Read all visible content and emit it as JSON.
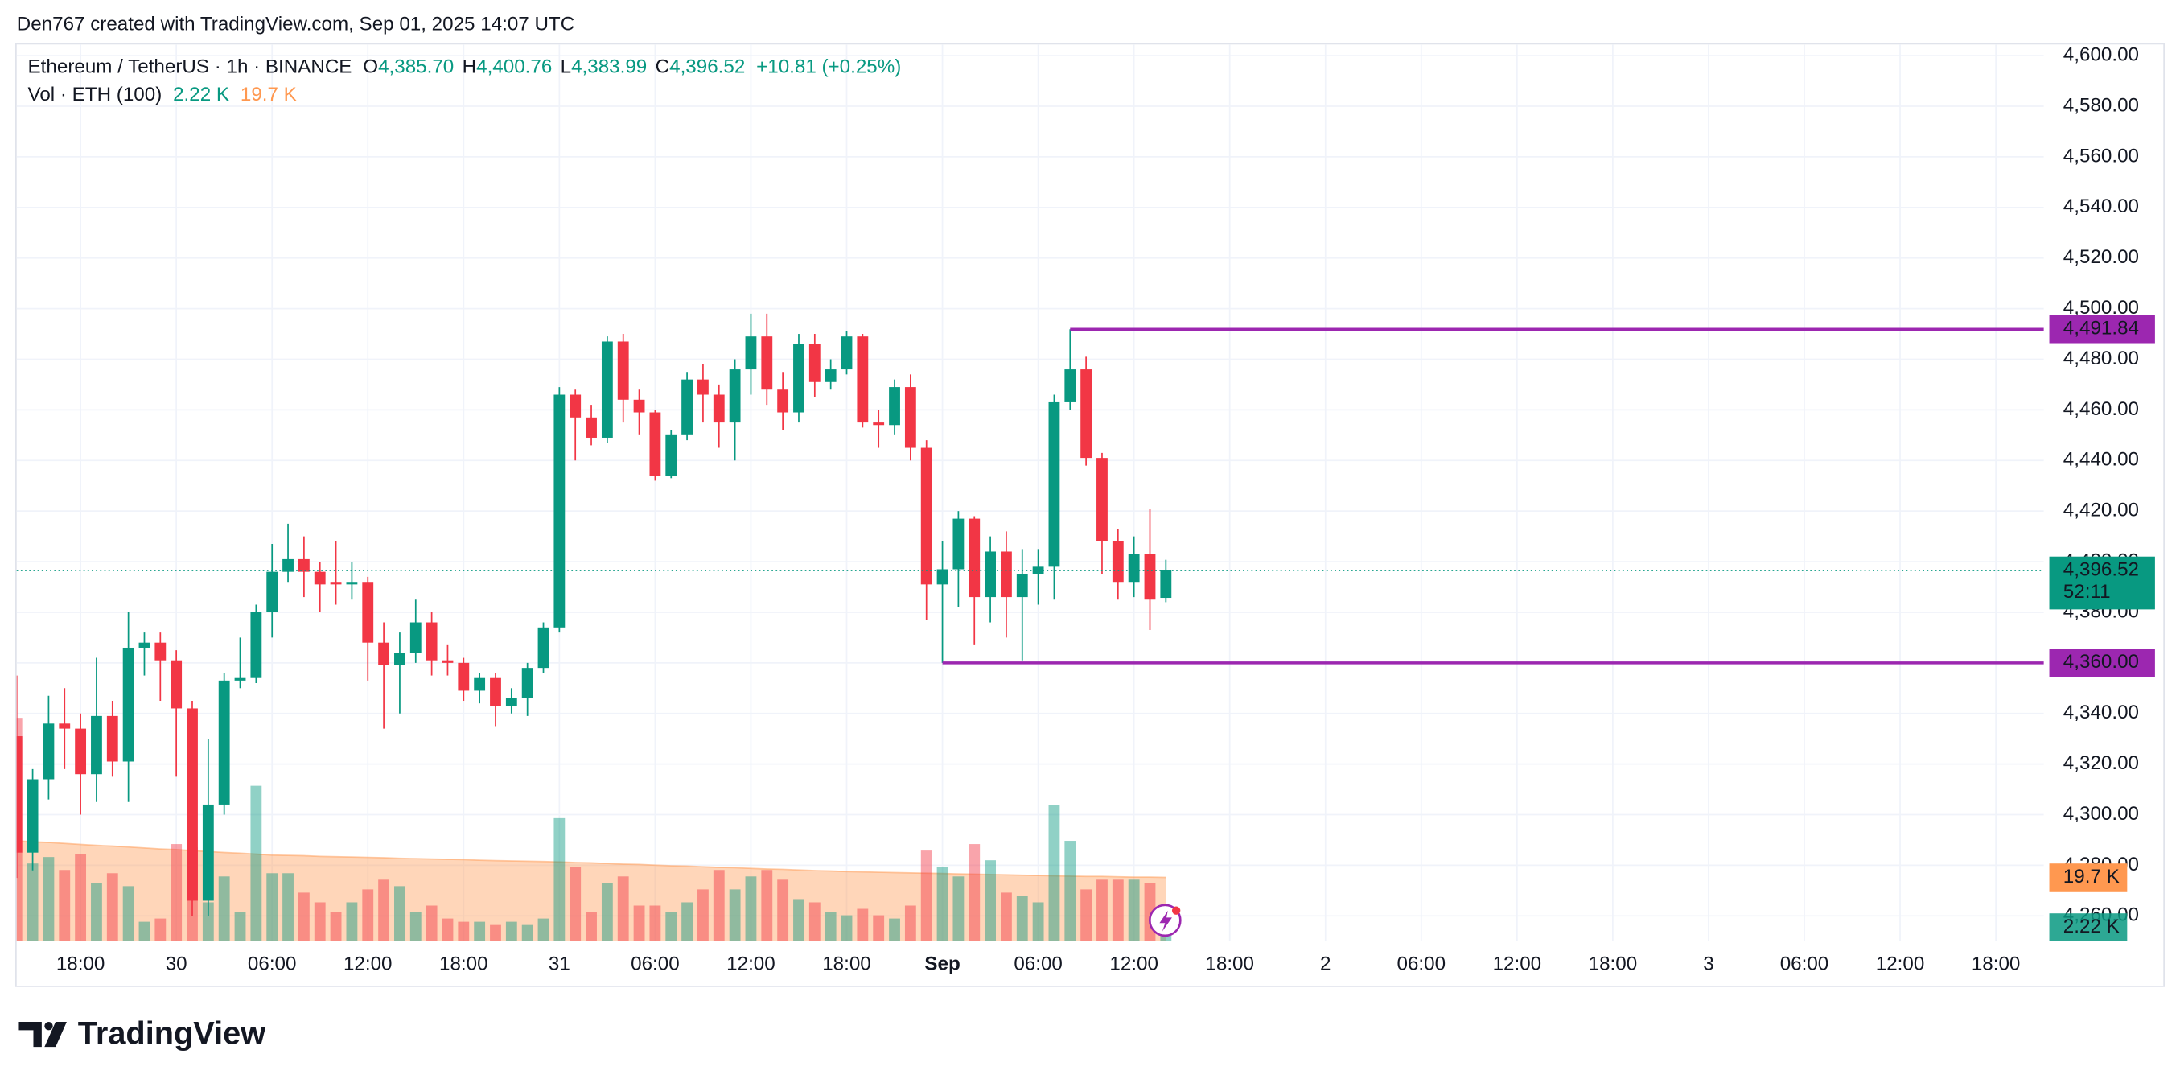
{
  "chart_data": {
    "type": "candlestick",
    "attribution": "Den767 created with TradingView.com, Sep 01, 2025 14:07 UTC",
    "symbol": "Ethereum / TetherUS · 1h · BINANCE",
    "ohlc_legend": [
      {
        "key": "O",
        "label": "4,385.70"
      },
      {
        "key": "H",
        "label": "4,400.76"
      },
      {
        "key": "L",
        "label": "4,383.99"
      },
      {
        "key": "C",
        "label": "4,396.52"
      }
    ],
    "change": "+10.81 (+0.25%)",
    "volume_title": "Vol · ETH (100)",
    "volume_last_label": "2.22 K",
    "volume_ma_label": "19.7 K",
    "brand": "TradingView",
    "up_color": "#089981",
    "down_color": "#f23645",
    "level_color": "#9c27b0",
    "volume_ma_color": "#ff9850",
    "grid": true,
    "xlim": [
      0,
      127
    ],
    "xticks": [
      {
        "value": 4,
        "label": "18:00"
      },
      {
        "value": 10,
        "label": "30"
      },
      {
        "value": 16,
        "label": "06:00"
      },
      {
        "value": 22,
        "label": "12:00"
      },
      {
        "value": 28,
        "label": "18:00"
      },
      {
        "value": 34,
        "label": "31"
      },
      {
        "value": 40,
        "label": "06:00"
      },
      {
        "value": 46,
        "label": "12:00"
      },
      {
        "value": 52,
        "label": "18:00"
      },
      {
        "value": 58,
        "label": "Sep",
        "bold": true
      },
      {
        "value": 64,
        "label": "06:00"
      },
      {
        "value": 70,
        "label": "12:00"
      },
      {
        "value": 76,
        "label": "18:00"
      },
      {
        "value": 82,
        "label": "2"
      },
      {
        "value": 88,
        "label": "06:00"
      },
      {
        "value": 94,
        "label": "12:00"
      },
      {
        "value": 100,
        "label": "18:00"
      },
      {
        "value": 106,
        "label": "3"
      },
      {
        "value": 112,
        "label": "06:00"
      },
      {
        "value": 118,
        "label": "12:00"
      },
      {
        "value": 124,
        "label": "18:00"
      }
    ],
    "ylim": [
      4250,
      4604.4
    ],
    "yticks": [
      {
        "value": 4260,
        "label": "4,260.00"
      },
      {
        "value": 4280,
        "label": "4,280.00"
      },
      {
        "value": 4300,
        "label": "4,300.00"
      },
      {
        "value": 4320,
        "label": "4,320.00"
      },
      {
        "value": 4340,
        "label": "4,340.00"
      },
      {
        "value": 4360,
        "label": "4,360.00"
      },
      {
        "value": 4380,
        "label": "4,380.00"
      },
      {
        "value": 4400,
        "label": "4,400.00"
      },
      {
        "value": 4420,
        "label": "4,420.00"
      },
      {
        "value": 4440,
        "label": "4,440.00"
      },
      {
        "value": 4460,
        "label": "4,460.00"
      },
      {
        "value": 4480,
        "label": "4,480.00"
      },
      {
        "value": 4500,
        "label": "4,500.00"
      },
      {
        "value": 4520,
        "label": "4,520.00"
      },
      {
        "value": 4540,
        "label": "4,540.00"
      },
      {
        "value": 4560,
        "label": "4,560.00"
      },
      {
        "value": 4580,
        "label": "4,580.00"
      },
      {
        "value": 4600,
        "label": "4,600.00"
      }
    ],
    "volume_lim": [
      0,
      277
    ],
    "open": [
      4331,
      4285,
      4314,
      4336,
      4334,
      4316,
      4339,
      4321,
      4366,
      4368,
      4361,
      4342,
      4266,
      4304,
      4353,
      4354,
      4380,
      4396,
      4401,
      4396,
      4392,
      4391,
      4392,
      4368,
      4359,
      4364,
      4376,
      4361,
      4360,
      4349,
      4354,
      4343,
      4346,
      4358,
      4374,
      4466,
      4457,
      4449,
      4487,
      4464,
      4459,
      4434,
      4450,
      4472,
      4466,
      4455,
      4476,
      4489,
      4468,
      4459,
      4486,
      4471,
      4476,
      4489,
      4455,
      4454,
      4469,
      4445,
      4391,
      4397,
      4417,
      4386,
      4404,
      4386,
      4395,
      4398,
      4463,
      4476,
      4441,
      4408,
      4392,
      4403,
      4385.7
    ],
    "high": [
      4355,
      4318,
      4347,
      4350,
      4340,
      4362,
      4345,
      4380,
      4372,
      4372,
      4365,
      4345,
      4330,
      4356,
      4370,
      4383,
      4407,
      4415,
      4410,
      4400,
      4408,
      4400,
      4394,
      4376,
      4372,
      4385,
      4380,
      4367,
      4362,
      4356,
      4356,
      4350,
      4360,
      4376,
      4469,
      4468,
      4462,
      4489,
      4490,
      4468,
      4460,
      4452,
      4475,
      4478,
      4470,
      4480,
      4498,
      4498,
      4475,
      4490,
      4490,
      4480,
      4491,
      4490,
      4460,
      4472,
      4474,
      4448,
      4408,
      4420,
      4418,
      4410,
      4412,
      4405,
      4405,
      4466,
      4491.84,
      4481,
      4443,
      4413,
      4410,
      4421,
      4400.76
    ],
    "low": [
      4275,
      4278,
      4306,
      4318,
      4300,
      4305,
      4315,
      4305,
      4355,
      4345,
      4315,
      4260,
      4260,
      4300,
      4350,
      4352,
      4370,
      4392,
      4386,
      4380,
      4383,
      4385,
      4353,
      4334,
      4340,
      4360,
      4355,
      4355,
      4345,
      4344,
      4335,
      4340,
      4339,
      4356,
      4372,
      4440,
      4446,
      4447,
      4455,
      4450,
      4432,
      4433,
      4448,
      4455,
      4445,
      4440,
      4466,
      4462,
      4452,
      4455,
      4465,
      4468,
      4474,
      4453,
      4445,
      4450,
      4440,
      4377,
      4360,
      4382,
      4367,
      4376,
      4370,
      4361,
      4383,
      4385,
      4460,
      4438,
      4395,
      4385,
      4386,
      4373,
      4383.99
    ],
    "close": [
      4285,
      4314,
      4336,
      4334,
      4316,
      4339,
      4321,
      4366,
      4368,
      4361,
      4342,
      4266,
      4304,
      4353,
      4354,
      4380,
      4396,
      4401,
      4396,
      4391,
      4391,
      4392,
      4368,
      4359,
      4364,
      4376,
      4361,
      4360,
      4349,
      4354,
      4343,
      4346,
      4358,
      4374,
      4466,
      4457,
      4449,
      4487,
      4464,
      4459,
      4434,
      4450,
      4472,
      4466,
      4455,
      4476,
      4489,
      4468,
      4459,
      4486,
      4471,
      4476,
      4489,
      4455,
      4454,
      4469,
      4445,
      4391,
      4397,
      4417,
      4386,
      4404,
      4386,
      4395,
      4398,
      4463,
      4476,
      4441,
      4408,
      4392,
      4403,
      4385,
      4396.52
    ],
    "volume": [
      69,
      24,
      26,
      22,
      27,
      18,
      21,
      17,
      6,
      7,
      30,
      29,
      12,
      20,
      9,
      48,
      21,
      21,
      15,
      12,
      9,
      12,
      16,
      19,
      17,
      9,
      11,
      7,
      6,
      6,
      5,
      6,
      5,
      7,
      38,
      23,
      9,
      18,
      20,
      11,
      11,
      9,
      12,
      16,
      22,
      16,
      20,
      22,
      19,
      13,
      12,
      9,
      8,
      10,
      8,
      7,
      11,
      28,
      23,
      20,
      30,
      25,
      15,
      14,
      12,
      42,
      31,
      16,
      19,
      19,
      19,
      18,
      2.22
    ],
    "volume_ma": [
      31.0,
      30.7,
      30.5,
      30.2,
      29.9,
      29.6,
      29.4,
      29.1,
      28.8,
      28.5,
      28.3,
      28.0,
      27.7,
      27.4,
      27.2,
      26.9,
      26.6,
      26.5,
      26.4,
      26.2,
      26.1,
      26.0,
      25.9,
      25.8,
      25.6,
      25.5,
      25.4,
      25.3,
      25.2,
      25.0,
      24.9,
      24.8,
      24.7,
      24.6,
      24.5,
      24.3,
      24.2,
      24.0,
      23.8,
      23.7,
      23.5,
      23.3,
      23.2,
      23.0,
      22.8,
      22.7,
      22.5,
      22.3,
      22.2,
      22.0,
      21.8,
      21.7,
      21.5,
      21.4,
      21.3,
      21.2,
      21.1,
      21.0,
      20.9,
      20.8,
      20.7,
      20.6,
      20.5,
      20.4,
      20.3,
      20.2,
      20.1,
      20.0,
      20.0,
      19.9,
      19.8,
      19.8,
      19.7
    ],
    "levels": [
      {
        "value": 4491.84,
        "label": "4,491.84",
        "from": 66
      },
      {
        "value": 4360,
        "label": "4,360.00",
        "from": 58
      }
    ],
    "last_price": {
      "value": 4396.52,
      "label": "4,396.52",
      "countdown": "52:11"
    }
  }
}
